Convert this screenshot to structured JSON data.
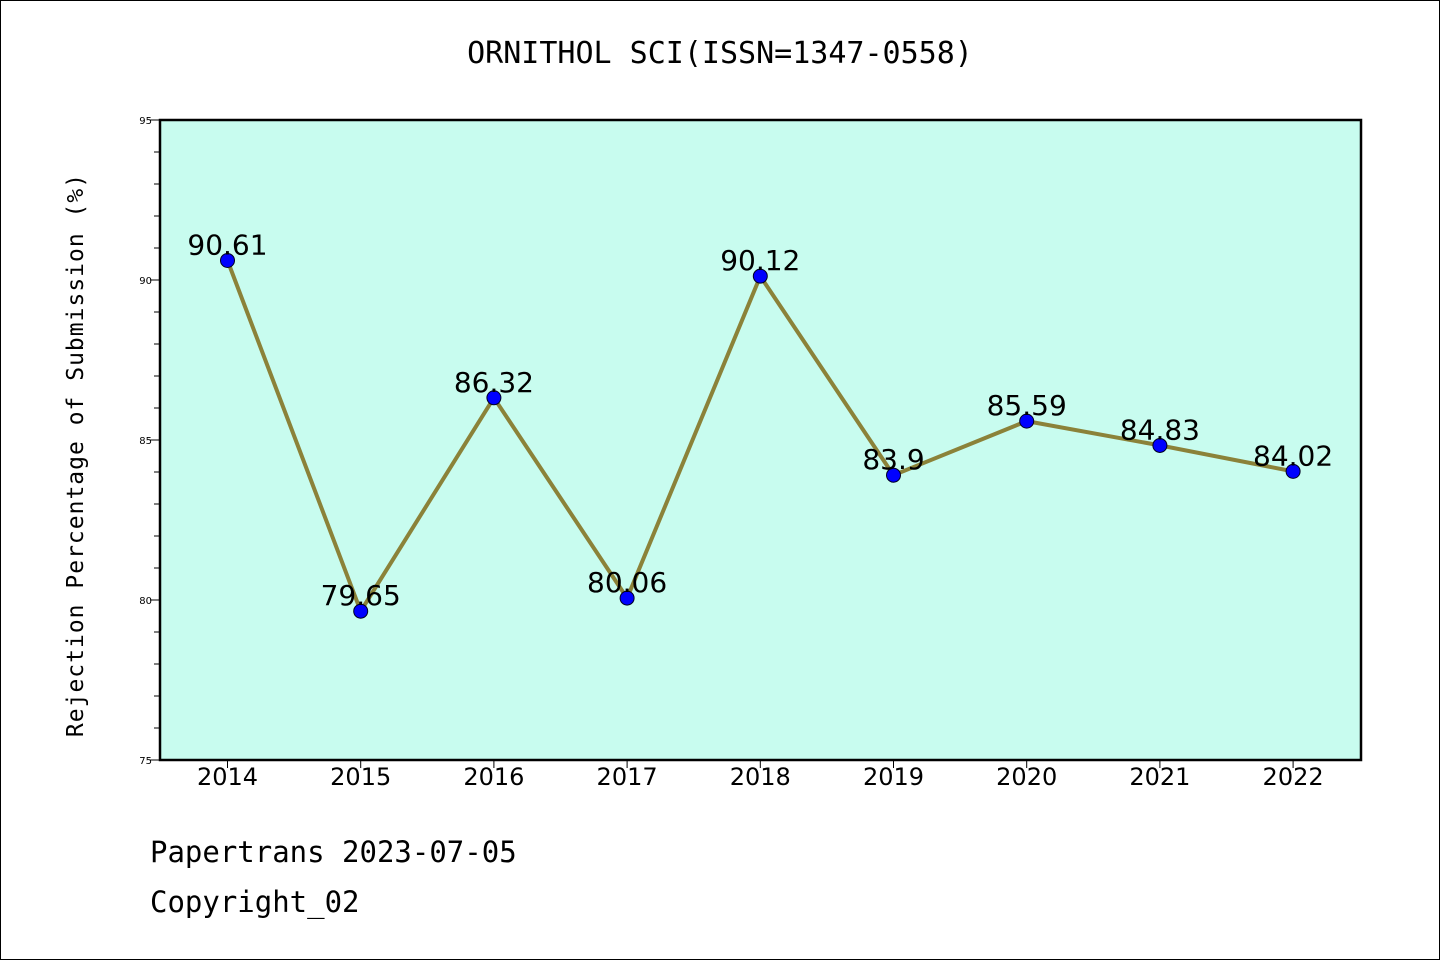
{
  "chart_data": {
    "type": "line",
    "title": "ORNITHOL SCI(ISSN=1347-0558)",
    "ylabel": "Rejection Percentage of Submission (%)",
    "xlabel": "",
    "categories": [
      "2014",
      "2015",
      "2016",
      "2017",
      "2018",
      "2019",
      "2020",
      "2021",
      "2022"
    ],
    "values": [
      90.61,
      79.65,
      86.32,
      80.06,
      90.12,
      83.9,
      85.59,
      84.83,
      84.02
    ],
    "value_labels": [
      "90.61",
      "79.65",
      "86.32",
      "80.06",
      "90.12",
      "83.9",
      "85.59",
      "84.83",
      "84.02"
    ],
    "ylim": [
      75,
      95
    ],
    "yticks": [
      "75",
      "80",
      "85",
      "90",
      "95"
    ],
    "grid": false,
    "colors": {
      "plot_background": "#c8fcef",
      "line": "#8b8239",
      "marker": "#0000ff"
    }
  },
  "footer": {
    "line1": "Papertrans 2023-07-05",
    "line2": "Copyright_02"
  }
}
